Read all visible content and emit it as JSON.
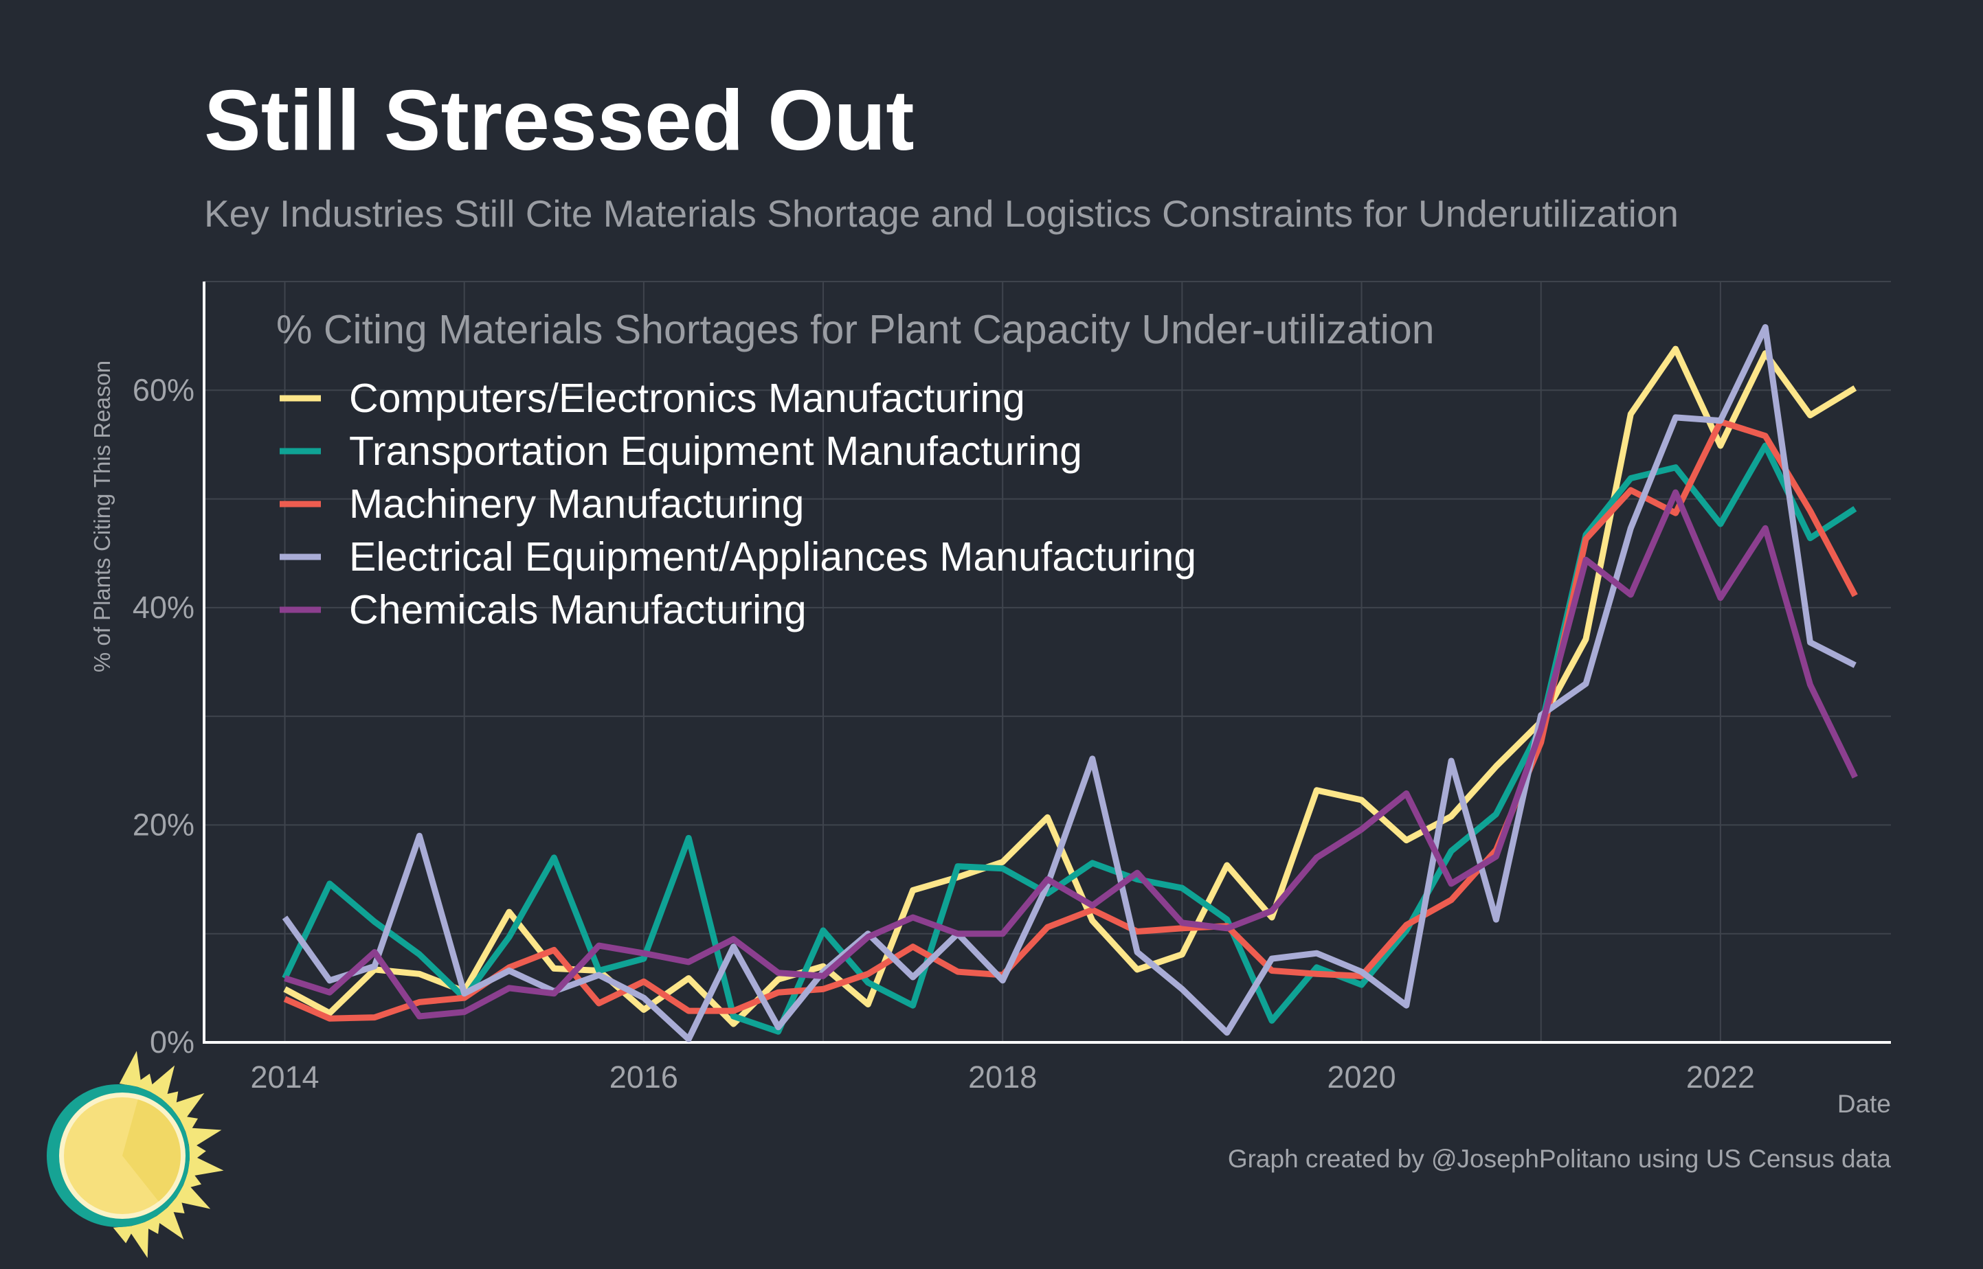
{
  "title": "Still Stressed Out",
  "subtitle": "Key Industries Still Cite Materials Shortage and Logistics Constraints for Underutilization",
  "caption": "Graph created by @JosephPolitano using US Census data",
  "colors": {
    "background": "#252a33",
    "title": "#ffffff",
    "subtitle": "#9a9da3",
    "grid": "#3f444d",
    "axis": "#ffffff",
    "tick_label": "#a2a5ab",
    "legend_text": "#ffffff",
    "logo_sun": "#f7e07d",
    "logo_ring": "#16a394",
    "logo_ray": "#f4e67a"
  },
  "logo": {
    "icon": "sun-logo-icon"
  },
  "chart_data": {
    "type": "line",
    "legend_title": "% Citing Materials Shortages for Plant Capacity Under-utilization",
    "legend_position": "top-left (inside plot)",
    "xlabel": "Date",
    "ylabel": "% of Plants Citing This Reason",
    "xlim": [
      2013.55,
      2022.95
    ],
    "ylim": [
      0,
      70
    ],
    "x_ticks": [
      2014,
      2016,
      2018,
      2020,
      2022
    ],
    "x_tick_labels": [
      "2014",
      "2016",
      "2018",
      "2020",
      "2022"
    ],
    "y_ticks": [
      0,
      20,
      40,
      60
    ],
    "y_tick_labels": [
      "0%",
      "20%",
      "40%",
      "60%"
    ],
    "grid": true,
    "x": [
      2014,
      2014.25,
      2014.5,
      2014.75,
      2015,
      2015.25,
      2015.5,
      2015.75,
      2016,
      2016.25,
      2016.5,
      2016.75,
      2017,
      2017.25,
      2017.5,
      2017.75,
      2018,
      2018.25,
      2018.5,
      2018.75,
      2019,
      2019.25,
      2019.5,
      2019.75,
      2020,
      2020.25,
      2020.5,
      2020.75,
      2021,
      2021.25,
      2021.5,
      2021.75,
      2022,
      2022.25,
      2022.5,
      2022.75
    ],
    "series": [
      {
        "name": "Computers/Electronics Manufacturing",
        "color": "#fde68a",
        "values": [
          4.9,
          2.7,
          6.7,
          6.3,
          4.7,
          12.0,
          6.8,
          6.6,
          3.0,
          5.9,
          1.7,
          5.8,
          7.0,
          3.5,
          14.0,
          15.2,
          16.6,
          20.7,
          11.2,
          6.7,
          8.1,
          16.3,
          11.5,
          23.2,
          22.3,
          18.6,
          20.8,
          25.4,
          29.5,
          37.1,
          57.8,
          63.8,
          54.9,
          63.4,
          57.7,
          60.2
        ]
      },
      {
        "name": "Transportation Equipment Manufacturing",
        "color": "#0fa395",
        "values": [
          5.9,
          14.6,
          11.1,
          8.1,
          4.1,
          9.7,
          17.0,
          6.6,
          7.7,
          18.8,
          2.4,
          1.0,
          10.3,
          5.5,
          3.4,
          16.2,
          16.0,
          13.7,
          16.5,
          15.0,
          14.2,
          11.3,
          2.0,
          6.9,
          5.3,
          10.3,
          17.6,
          21.0,
          29.0,
          46.7,
          51.9,
          52.9,
          47.7,
          54.9,
          46.4,
          49.1
        ]
      },
      {
        "name": "Machinery Manufacturing",
        "color": "#ee5d50",
        "values": [
          4.0,
          2.2,
          2.3,
          3.7,
          4.1,
          6.9,
          8.5,
          3.6,
          5.6,
          2.9,
          2.9,
          4.6,
          4.9,
          6.3,
          8.8,
          6.5,
          6.2,
          10.6,
          12.2,
          10.2,
          10.5,
          10.7,
          6.6,
          6.3,
          6.1,
          10.8,
          13.1,
          17.7,
          27.6,
          46.3,
          50.8,
          48.7,
          57.1,
          55.8,
          48.9,
          41.1
        ]
      },
      {
        "name": "Electrical Equipment/Appliances Manufacturing",
        "color": "#a9acd6",
        "values": [
          11.5,
          5.7,
          7.0,
          19.0,
          4.5,
          6.6,
          4.7,
          6.2,
          4.1,
          0.3,
          8.8,
          1.4,
          6.5,
          10.0,
          6.0,
          10.0,
          5.7,
          14.5,
          26.1,
          8.3,
          4.9,
          0.9,
          7.7,
          8.2,
          6.5,
          3.4,
          25.9,
          11.3,
          30.1,
          33.0,
          47.3,
          57.5,
          57.2,
          65.8,
          36.8,
          34.7
        ]
      },
      {
        "name": "Chemicals Manufacturing",
        "color": "#8c3f8f",
        "values": [
          5.9,
          4.6,
          8.3,
          2.4,
          2.8,
          5.0,
          4.5,
          8.9,
          8.2,
          7.4,
          9.5,
          6.4,
          6.1,
          9.7,
          11.5,
          10.0,
          10.0,
          15.0,
          12.6,
          15.6,
          11.0,
          10.5,
          12.1,
          17.0,
          19.6,
          22.9,
          14.6,
          17.1,
          28.8,
          44.4,
          41.2,
          50.6,
          40.9,
          47.3,
          32.9,
          24.4
        ]
      }
    ]
  }
}
